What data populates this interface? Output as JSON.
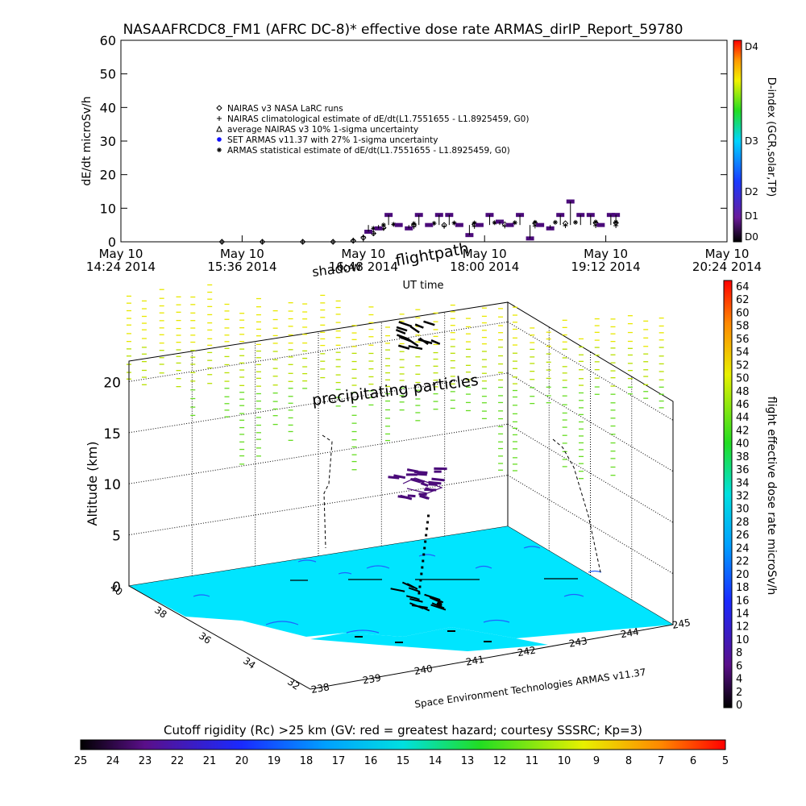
{
  "title": "NASAAFRCDC8_FM1 (AFRC DC-8)* effective dose rate ARMAS_dirIP_Report_59780",
  "top_chart": {
    "ylabel": "dE/dt microSv/h",
    "xlabel": "UT time",
    "y_ticks": [
      "0",
      "10",
      "20",
      "30",
      "40",
      "50",
      "60"
    ],
    "ylim": [
      0,
      60
    ],
    "x_ticks": [
      {
        "date": "May 10",
        "time": "14:24 2014"
      },
      {
        "date": "May 10",
        "time": "15:36 2014"
      },
      {
        "date": "May 10",
        "time": "16:48 2014"
      },
      {
        "date": "May 10",
        "time": "18:00 2014"
      },
      {
        "date": "May 10",
        "time": "19:12 2014"
      },
      {
        "date": "May 10",
        "time": "20:24 2014"
      }
    ],
    "legend": [
      {
        "symbol": "diamond",
        "label": "NAIRAS v3 NASA LaRC runs",
        "color": "#000000"
      },
      {
        "symbol": "plus",
        "label": "NAIRAS climatological estimate of dE/dt(L1.7551655 - L1.8925459, G0)",
        "color": "#000000"
      },
      {
        "symbol": "triangle",
        "label": "average NAIRAS v3 10% 1-sigma uncertainty",
        "color": "#000000"
      },
      {
        "symbol": "dot",
        "label": "SET ARMAS v11.37 with 27% 1-sigma uncertainty",
        "color": "#1010ff"
      },
      {
        "symbol": "asterisk",
        "label": "ARMAS statistical estimate of dE/dt(L1.7551655 - L1.8925459, G0)",
        "color": "#000000"
      }
    ],
    "dindex_label": "D-index (GCR,solar,TP)",
    "dindex_ticks": [
      "D0",
      "D1",
      "D2",
      "D3",
      "D4"
    ]
  },
  "chart_data": {
    "type": "scatter",
    "x_unit": "UT hours",
    "x_range": [
      14.4,
      20.4
    ],
    "series": [
      {
        "name": "NAIRAS climatological estimate of dE/dt(L1.7551655 - L1.8925459, G0)",
        "x": [
          15.4,
          15.8,
          16.2,
          16.5,
          16.7,
          16.8,
          16.9,
          17.0,
          17.3,
          17.6,
          17.9,
          18.2,
          18.5,
          18.8,
          19.1,
          19.3
        ],
        "y": [
          0,
          0,
          0,
          0,
          0.5,
          1.5,
          2.5,
          4,
          4.5,
          4.6,
          4.6,
          4.7,
          4.7,
          4.8,
          4.8,
          4.8
        ]
      },
      {
        "name": "NAIRAS v3 NASA LaRC runs",
        "x": [
          15.4,
          15.8,
          16.2,
          16.5,
          16.7,
          16.8,
          16.9,
          17.0,
          17.3,
          17.6,
          17.9,
          18.2,
          18.5,
          18.8,
          19.1,
          19.3
        ],
        "y": [
          0,
          0,
          0,
          0,
          0.3,
          1.2,
          2.5,
          4.2,
          5,
          5,
          5.2,
          5.2,
          5.5,
          5.5,
          5.6,
          5.6
        ]
      },
      {
        "name": "ARMAS statistical estimate of dE/dt(L1.7551655 - L1.8925459, G0)",
        "x": [
          16.9,
          17.0,
          17.1,
          17.3,
          17.5,
          17.7,
          17.9,
          18.1,
          18.3,
          18.5,
          18.7,
          18.9,
          19.1,
          19.3
        ],
        "y": [
          4,
          5,
          5.2,
          5.4,
          5.5,
          5.6,
          5.6,
          5.7,
          5.7,
          5.8,
          5.8,
          5.8,
          5.9,
          5.9
        ]
      },
      {
        "name": "SET ARMAS v11.37 with 27% 1-sigma uncertainty",
        "x": [
          16.85,
          16.95,
          17.05,
          17.15,
          17.25,
          17.35,
          17.45,
          17.55,
          17.65,
          17.75,
          17.85,
          17.95,
          18.05,
          18.15,
          18.25,
          18.35,
          18.45,
          18.55,
          18.65,
          18.75,
          18.85,
          18.95,
          19.05,
          19.15,
          19.25,
          19.3
        ],
        "y": [
          3,
          4,
          8,
          5,
          4,
          8,
          5,
          8,
          8,
          5,
          2,
          5,
          8,
          6,
          5,
          8,
          1,
          5,
          4,
          8,
          12,
          8,
          8,
          5,
          8,
          8
        ]
      }
    ]
  },
  "main_chart": {
    "ylabel": "Altitude (km)",
    "z_ticks": [
      "0",
      "5",
      "10",
      "15",
      "20"
    ],
    "zlim": [
      0,
      22
    ],
    "lat_ticks": [
      "32",
      "34",
      "36",
      "38",
      "40"
    ],
    "lon_ticks": [
      "238",
      "239",
      "240",
      "241",
      "242",
      "243",
      "244",
      "245"
    ],
    "annotations": {
      "shadow": "shadow",
      "flightpath": "flightpath",
      "precipitating": "precipitating particles",
      "credit": "Space Environment Technologies ARMAS v11.37"
    },
    "right_cbar_label": "flight effective dose rate microSv/h",
    "right_cbar_ticks": [
      "0",
      "2",
      "4",
      "6",
      "8",
      "10",
      "12",
      "14",
      "16",
      "18",
      "20",
      "22",
      "24",
      "26",
      "28",
      "30",
      "32",
      "34",
      "36",
      "38",
      "40",
      "42",
      "44",
      "46",
      "48",
      "50",
      "52",
      "54",
      "56",
      "58",
      "60",
      "62",
      "64"
    ],
    "bottom_cbar_label": "Cutoff rigidity (Rc) >25 km (GV: red = greatest hazard; courtesy SSSRC; Kp=3)",
    "bottom_cbar_ticks": [
      "25",
      "24",
      "23",
      "22",
      "21",
      "20",
      "19",
      "18",
      "17",
      "16",
      "15",
      "14",
      "13",
      "12",
      "11",
      "10",
      "9",
      "8",
      "7",
      "6",
      "5"
    ]
  },
  "colors": {
    "land": "#00e5ff",
    "particles": "#9ee000",
    "flight": "#4b0b7a",
    "armas_blue": "#1010ff"
  }
}
